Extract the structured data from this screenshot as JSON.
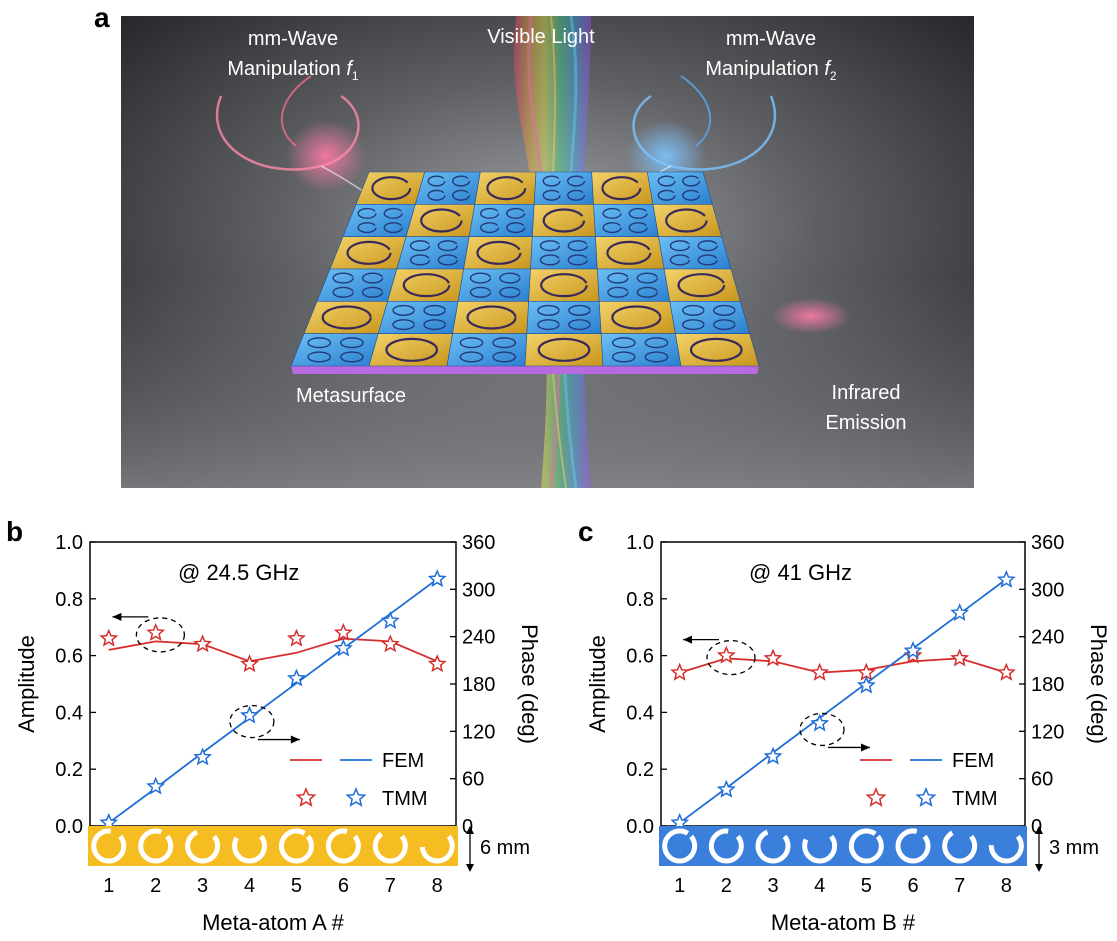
{
  "panel_a": {
    "letter": "a",
    "label_f1_line1": "mm-Wave",
    "label_f1_line2": "Manipulation",
    "label_f1_symbol": "f",
    "label_f1_sub": "1",
    "label_visible": "Visible Light",
    "label_f2_line1": "mm-Wave",
    "label_f2_line2": "Manipulation",
    "label_f2_symbol": "f",
    "label_f2_sub": "2",
    "label_metasurface": "Metasurface",
    "label_ir_line1": "Infrared",
    "label_ir_line2": "Emission",
    "colors": {
      "gold": "#e8b82a",
      "blue": "#3c9be0",
      "red": "#e0506a",
      "sky": "#5ab0ff"
    }
  },
  "chart_data": [
    {
      "type": "line",
      "panel": "b",
      "annotation": "@ 24.5 GHz",
      "xlabel": "Meta-atom A #",
      "ylabel_left": "Amplitude",
      "ylabel_right": "Phase (deg)",
      "x": [
        1,
        2,
        3,
        4,
        5,
        6,
        7,
        8
      ],
      "xticks": [
        "1",
        "2",
        "3",
        "4",
        "5",
        "6",
        "7",
        "8"
      ],
      "ylim_left": [
        0,
        1.0
      ],
      "yticks_left": [
        "0.0",
        "0.2",
        "0.4",
        "0.6",
        "0.8",
        "1.0"
      ],
      "ylim_right": [
        0,
        360
      ],
      "yticks_right": [
        "0",
        "60",
        "120",
        "180",
        "240",
        "300",
        "360"
      ],
      "legend": [
        "FEM",
        "TMM"
      ],
      "series": [
        {
          "name": "FEM",
          "axis": "left",
          "kind": "line",
          "color": "#d62d2d",
          "values": [
            0.62,
            0.65,
            0.64,
            0.58,
            0.61,
            0.66,
            0.65,
            0.58
          ]
        },
        {
          "name": "TMM",
          "axis": "left",
          "kind": "star",
          "color": "#d62d2d",
          "values": [
            0.66,
            0.68,
            0.64,
            0.57,
            0.66,
            0.68,
            0.64,
            0.57
          ]
        },
        {
          "name": "FEM",
          "axis": "right",
          "kind": "line",
          "color": "#1f6fd6",
          "values": [
            4,
            48,
            93,
            137,
            181,
            225,
            269,
            313
          ]
        },
        {
          "name": "TMM",
          "axis": "right",
          "kind": "star",
          "color": "#1f6fd6",
          "values": [
            4,
            50,
            87,
            140,
            187,
            225,
            260,
            313
          ]
        }
      ],
      "strip": {
        "label": "6 mm",
        "fill": "#f5bd22",
        "ring_gaps": [
          0.12,
          0.08,
          0.2,
          0.3,
          0.05,
          0.1,
          0.24,
          0.4
        ]
      }
    },
    {
      "type": "line",
      "panel": "c",
      "annotation": "@ 41 GHz",
      "xlabel": "Meta-atom B #",
      "ylabel_left": "Amplitude",
      "ylabel_right": "Phase (deg)",
      "x": [
        1,
        2,
        3,
        4,
        5,
        6,
        7,
        8
      ],
      "xticks": [
        "1",
        "2",
        "3",
        "4",
        "5",
        "6",
        "7",
        "8"
      ],
      "ylim_left": [
        0,
        1.0
      ],
      "yticks_left": [
        "0.0",
        "0.2",
        "0.4",
        "0.6",
        "0.8",
        "1.0"
      ],
      "ylim_right": [
        0,
        360
      ],
      "yticks_right": [
        "0",
        "60",
        "120",
        "180",
        "240",
        "300",
        "360"
      ],
      "legend": [
        "FEM",
        "TMM"
      ],
      "series": [
        {
          "name": "FEM",
          "axis": "left",
          "kind": "line",
          "color": "#d62d2d",
          "values": [
            0.54,
            0.59,
            0.58,
            0.54,
            0.55,
            0.58,
            0.59,
            0.54
          ]
        },
        {
          "name": "TMM",
          "axis": "left",
          "kind": "star",
          "color": "#d62d2d",
          "values": [
            0.54,
            0.6,
            0.59,
            0.54,
            0.54,
            0.6,
            0.59,
            0.54
          ]
        },
        {
          "name": "FEM",
          "axis": "right",
          "kind": "line",
          "color": "#1f6fd6",
          "values": [
            4,
            48,
            93,
            137,
            181,
            225,
            269,
            313
          ]
        },
        {
          "name": "TMM",
          "axis": "right",
          "kind": "star",
          "color": "#1f6fd6",
          "values": [
            4,
            46,
            88,
            130,
            178,
            222,
            270,
            312
          ]
        }
      ],
      "strip": {
        "label": "3 mm",
        "fill": "#3a7fdc",
        "ring_gaps": [
          0.05,
          0.12,
          0.2,
          0.32,
          0.04,
          0.1,
          0.22,
          0.38
        ]
      }
    }
  ]
}
